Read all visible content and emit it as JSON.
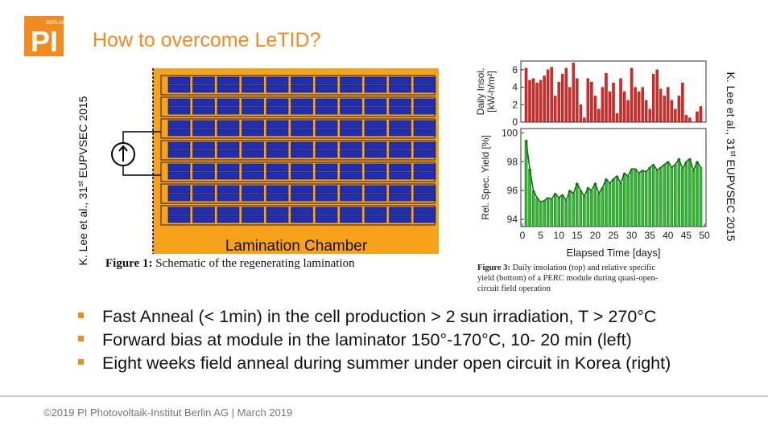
{
  "header": {
    "logo_small": "BERLIN",
    "logo": "PI",
    "title": "How to overcome LeTID?"
  },
  "left_figure": {
    "chamber_label": "Lamination Chamber",
    "caption_label": "Figure 1:",
    "caption": "Schematic of the regenerating lamination"
  },
  "left_source": {
    "text": "K. Lee et al., 31",
    "sup": "st",
    "rest": " EUPVSEC 2015"
  },
  "right_source": {
    "text": "K. Lee et al., 31",
    "sup": "st",
    "rest": " EUPVSEC 2015"
  },
  "chart_data": [
    {
      "type": "bar",
      "ylabel": [
        "Daily Insol.",
        "[kW-h/m²]"
      ],
      "color": "#e8201e",
      "x": [
        1,
        2,
        3,
        4,
        5,
        6,
        7,
        8,
        9,
        10,
        11,
        12,
        13,
        14,
        15,
        16,
        17,
        18,
        19,
        20,
        21,
        22,
        23,
        24,
        25,
        26,
        27,
        28,
        29,
        30,
        31,
        32,
        33,
        34,
        35,
        36,
        37,
        38,
        39,
        40,
        41,
        42,
        43,
        44,
        45,
        46,
        47,
        48,
        49
      ],
      "values": [
        6.2,
        4.8,
        5.0,
        4.5,
        4.8,
        5.3,
        6.0,
        6.3,
        3.0,
        4.6,
        5.5,
        6.2,
        4.0,
        6.8,
        5.0,
        2.0,
        0.5,
        5.0,
        4.6,
        3.0,
        1.5,
        4.0,
        5.6,
        3.5,
        4.5,
        1.0,
        5.0,
        3.5,
        2.5,
        6.2,
        4.0,
        3.5,
        4.0,
        2.5,
        1.5,
        5.5,
        6.0,
        3.8,
        3.0,
        4.0,
        2.5,
        1.5,
        3.0,
        4.5,
        0.8,
        0.5,
        0,
        1.2,
        1.8
      ],
      "xlim": [
        0,
        50
      ],
      "ylim": [
        0,
        7
      ],
      "yticks": [
        0,
        2,
        4,
        6
      ]
    },
    {
      "type": "bar",
      "ylabel": [
        "Rel. Spec. Yield [%]"
      ],
      "xlabel": "Elapsed Time [days]",
      "color": "#22c022",
      "line_color": "#116611",
      "x": [
        1,
        2,
        3,
        4,
        5,
        6,
        7,
        8,
        9,
        10,
        11,
        12,
        13,
        14,
        15,
        16,
        17,
        18,
        19,
        20,
        21,
        22,
        23,
        24,
        25,
        26,
        27,
        28,
        29,
        30,
        31,
        32,
        33,
        34,
        35,
        36,
        37,
        38,
        39,
        40,
        41,
        42,
        43,
        44,
        45,
        46,
        47,
        48,
        49
      ],
      "values": [
        99.5,
        97.5,
        96.0,
        95.5,
        95.2,
        95.3,
        95.5,
        95.4,
        95.8,
        95.5,
        95.7,
        95.3,
        96.0,
        95.8,
        96.5,
        96.0,
        95.6,
        96.2,
        96.0,
        96.5,
        95.8,
        96.2,
        96.8,
        96.5,
        96.8,
        97.0,
        96.5,
        97.2,
        97.0,
        97.5,
        97.5,
        97.2,
        97.4,
        97.3,
        97.6,
        97.8,
        97.4,
        97.6,
        97.8,
        98.0,
        97.6,
        97.8,
        98.2,
        97.5,
        98.0,
        98.2,
        97.4,
        98.0,
        97.6
      ],
      "xlim": [
        0,
        50
      ],
      "xticks": [
        0,
        5,
        10,
        15,
        20,
        25,
        30,
        35,
        40,
        45,
        50
      ],
      "ylim": [
        93.5,
        100.3
      ],
      "yticks": [
        94,
        96,
        98,
        100
      ]
    }
  ],
  "right_caption": {
    "label": "Figure 3:",
    "lines": [
      "Daily insolation (top) and relative specific",
      "yield (bottom) of a PERC module during quasi-open-",
      "circuit field operation"
    ]
  },
  "bullets": [
    "Fast Anneal (< 1min) in the cell production > 2 sun  irradiation, T > 270°C",
    "Forward bias at module in the laminator 150°-170°C, 10- 20 min (left)",
    "Eight weeks field anneal during summer under open circuit in Korea (right)"
  ],
  "footer": "©2019 PI Photovoltaik-Institut Berlin AG | March 2019"
}
